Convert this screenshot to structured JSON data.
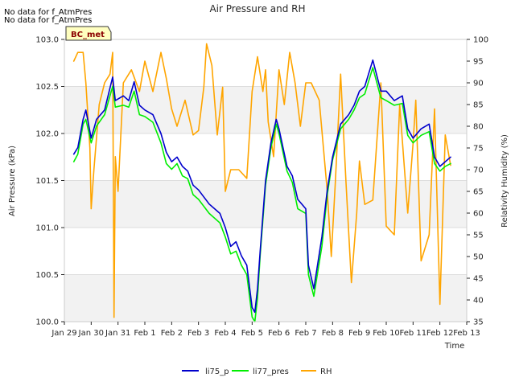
{
  "notes": [
    "No data for f_AtmPres",
    "No data for f_AtmPres"
  ],
  "site_label": "BC_met",
  "chart_data": {
    "type": "line",
    "title": "Air Pressure and RH",
    "xlabel": "Time",
    "ylabel_left": "Air Pressure (kPa)",
    "ylabel_right": "Relativity Humidity (%)",
    "x_ticks": [
      "Jan 29",
      "Jan 30",
      "Jan 31",
      "Feb 1",
      "Feb 2",
      "Feb 3",
      "Feb 4",
      "Feb 5",
      "Feb 6",
      "Feb 7",
      "Feb 8",
      "Feb 9",
      "Feb 10",
      "Feb 11",
      "Feb 12",
      "Feb 13"
    ],
    "xlim": [
      0,
      15
    ],
    "ylim_left": [
      100.0,
      103.0
    ],
    "ylim_right": [
      35,
      100
    ],
    "y_ticks_left": [
      "100.0",
      "100.5",
      "101.0",
      "101.5",
      "102.0",
      "102.5",
      "103.0"
    ],
    "y_ticks_right": [
      "35",
      "40",
      "45",
      "50",
      "55",
      "60",
      "65",
      "70",
      "75",
      "80",
      "85",
      "90",
      "95",
      "100"
    ],
    "grid_bands": true,
    "legend_position": "bottom-center",
    "series": [
      {
        "name": "li75_p",
        "axis": "left",
        "color": "#0000cc",
        "x": [
          0.35,
          0.5,
          0.7,
          0.8,
          1.0,
          1.2,
          1.5,
          1.8,
          1.9,
          2.2,
          2.4,
          2.6,
          2.8,
          3.0,
          3.3,
          3.6,
          3.8,
          4.0,
          4.2,
          4.4,
          4.6,
          4.8,
          5.0,
          5.4,
          5.8,
          6.0,
          6.2,
          6.4,
          6.6,
          6.8,
          7.0,
          7.1,
          7.2,
          7.3,
          7.5,
          7.7,
          7.9,
          8.0,
          8.3,
          8.5,
          8.7,
          9.0,
          9.1,
          9.3,
          9.6,
          9.8,
          10.0,
          10.3,
          10.6,
          10.8,
          11.0,
          11.2,
          11.5,
          11.8,
          12.0,
          12.3,
          12.6,
          12.8,
          13.0,
          13.3,
          13.6,
          13.8,
          14.0,
          14.2,
          14.4
        ],
        "values": [
          101.78,
          101.85,
          102.15,
          102.25,
          101.95,
          102.15,
          102.25,
          102.6,
          102.35,
          102.4,
          102.35,
          102.55,
          102.3,
          102.25,
          102.2,
          102.0,
          101.8,
          101.7,
          101.75,
          101.65,
          101.6,
          101.45,
          101.4,
          101.25,
          101.15,
          101.0,
          100.8,
          100.85,
          100.7,
          100.6,
          100.15,
          100.1,
          100.35,
          100.75,
          101.5,
          101.9,
          102.15,
          102.05,
          101.65,
          101.55,
          101.3,
          101.2,
          100.6,
          100.35,
          100.9,
          101.4,
          101.75,
          102.1,
          102.2,
          102.3,
          102.45,
          102.5,
          102.78,
          102.45,
          102.45,
          102.35,
          102.4,
          102.05,
          101.95,
          102.05,
          102.1,
          101.75,
          101.65,
          101.7,
          101.75
        ]
      },
      {
        "name": "li77_pres",
        "axis": "left",
        "color": "#00ee00",
        "x": [
          0.35,
          0.5,
          0.7,
          0.8,
          1.0,
          1.2,
          1.5,
          1.8,
          1.9,
          2.2,
          2.4,
          2.6,
          2.8,
          3.0,
          3.3,
          3.6,
          3.8,
          4.0,
          4.2,
          4.4,
          4.6,
          4.8,
          5.0,
          5.4,
          5.8,
          6.0,
          6.2,
          6.4,
          6.6,
          6.8,
          7.0,
          7.1,
          7.2,
          7.3,
          7.5,
          7.7,
          7.9,
          8.0,
          8.3,
          8.5,
          8.7,
          9.0,
          9.1,
          9.3,
          9.6,
          9.8,
          10.0,
          10.3,
          10.6,
          10.8,
          11.0,
          11.2,
          11.5,
          11.8,
          12.0,
          12.3,
          12.6,
          12.8,
          13.0,
          13.3,
          13.6,
          13.8,
          14.0,
          14.2,
          14.4
        ],
        "values": [
          101.7,
          101.78,
          102.1,
          102.15,
          101.9,
          102.08,
          102.2,
          102.5,
          102.28,
          102.3,
          102.28,
          102.45,
          102.2,
          102.18,
          102.12,
          101.9,
          101.68,
          101.62,
          101.68,
          101.55,
          101.52,
          101.35,
          101.3,
          101.15,
          101.05,
          100.9,
          100.72,
          100.75,
          100.6,
          100.5,
          100.05,
          100.0,
          100.25,
          100.7,
          101.45,
          101.85,
          102.1,
          102.0,
          101.6,
          101.48,
          101.2,
          101.15,
          100.5,
          100.27,
          100.8,
          101.35,
          101.72,
          102.05,
          102.15,
          102.25,
          102.38,
          102.42,
          102.7,
          102.38,
          102.35,
          102.3,
          102.32,
          101.98,
          101.9,
          101.98,
          102.02,
          101.68,
          101.6,
          101.65,
          101.68
        ]
      },
      {
        "name": "RH",
        "axis": "right",
        "color": "#ffa500",
        "x": [
          0.35,
          0.5,
          0.7,
          0.8,
          0.95,
          1.0,
          1.1,
          1.3,
          1.5,
          1.7,
          1.8,
          1.85,
          1.9,
          2.0,
          2.2,
          2.5,
          2.8,
          3.0,
          3.3,
          3.6,
          3.8,
          4.0,
          4.2,
          4.5,
          4.8,
          5.0,
          5.2,
          5.3,
          5.5,
          5.7,
          5.9,
          6.0,
          6.2,
          6.5,
          6.8,
          7.0,
          7.2,
          7.4,
          7.5,
          7.6,
          7.8,
          8.0,
          8.2,
          8.4,
          8.6,
          8.8,
          9.0,
          9.2,
          9.5,
          9.8,
          9.95,
          10.1,
          10.3,
          10.5,
          10.7,
          10.9,
          11.0,
          11.2,
          11.5,
          11.8,
          12.0,
          12.3,
          12.5,
          12.8,
          13.0,
          13.1,
          13.3,
          13.6,
          13.8,
          14.0,
          14.2,
          14.4
        ],
        "values": [
          95,
          97,
          97,
          90,
          75,
          61,
          70,
          85,
          90,
          92,
          97,
          36,
          73,
          65,
          90,
          93,
          88,
          95,
          88,
          97,
          91,
          84,
          80,
          86,
          78,
          79,
          89,
          99,
          94,
          78,
          89,
          65,
          70,
          70,
          68,
          88,
          96,
          88,
          93,
          81,
          73,
          93,
          85,
          97,
          90,
          80,
          90,
          90,
          86,
          65,
          50,
          67,
          92,
          67,
          44,
          60,
          72,
          62,
          63,
          90,
          57,
          55,
          85,
          60,
          76,
          86,
          49,
          55,
          84,
          39,
          78,
          71
        ]
      }
    ]
  }
}
